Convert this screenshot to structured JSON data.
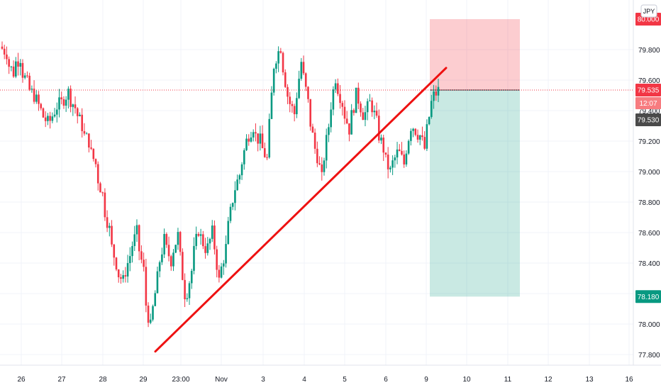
{
  "chart_data": {
    "type": "candlestick",
    "symbol_label": "JPY",
    "ylim": [
      77.7,
      80.0
    ],
    "y_ticks": [
      "79.800",
      "79.600",
      "79.400",
      "79.200",
      "79.000",
      "78.800",
      "78.600",
      "78.400",
      "78.200",
      "78.000",
      "77.800"
    ],
    "y_tick_values": [
      79.8,
      79.6,
      79.4,
      79.2,
      79.0,
      78.8,
      78.6,
      78.4,
      78.2,
      78.0,
      77.8
    ],
    "x_ticks": [
      "26",
      "27",
      "28",
      "29",
      "23:00",
      "Nov",
      "3",
      "4",
      "5",
      "6",
      "9",
      "10",
      "11",
      "12",
      "13",
      "16"
    ],
    "price_tags": {
      "current_price": "79.535",
      "countdown": "12:07",
      "last_close": "79.530",
      "target": "78.180",
      "stop": "80.000"
    },
    "levels": {
      "stop": 80.0,
      "entry": 79.535,
      "target": 78.18,
      "last_close": 79.53
    },
    "trendline": {
      "start": [
        "29",
        77.82
      ],
      "end": [
        "9",
        79.68
      ]
    },
    "path_points": [
      [
        79.82,
        79.78
      ],
      [
        79.72,
        79.65
      ],
      [
        79.7,
        79.75
      ],
      [
        79.68,
        79.58
      ],
      [
        79.55,
        79.5
      ],
      [
        79.5,
        79.4
      ],
      [
        79.38,
        79.32
      ],
      [
        79.3,
        79.4
      ],
      [
        79.42,
        79.45
      ],
      [
        79.46,
        79.52
      ],
      [
        79.5,
        79.42
      ],
      [
        79.4,
        79.3
      ],
      [
        79.25,
        79.2
      ],
      [
        79.15,
        79.05
      ],
      [
        79.0,
        78.85
      ],
      [
        78.8,
        78.62
      ],
      [
        78.55,
        78.4
      ],
      [
        78.35,
        78.28
      ],
      [
        78.3,
        78.45
      ],
      [
        78.48,
        78.6
      ],
      [
        78.55,
        78.35
      ],
      [
        78.2,
        77.98
      ],
      [
        78.0,
        78.3
      ],
      [
        78.35,
        78.55
      ],
      [
        78.52,
        78.42
      ],
      [
        78.45,
        78.58
      ],
      [
        78.55,
        78.2
      ],
      [
        78.15,
        78.35
      ],
      [
        78.4,
        78.62
      ],
      [
        78.6,
        78.5
      ],
      [
        78.45,
        78.6
      ],
      [
        78.62,
        78.28
      ],
      [
        78.3,
        78.5
      ],
      [
        78.55,
        78.82
      ],
      [
        78.85,
        78.98
      ],
      [
        79.0,
        79.2
      ],
      [
        79.22,
        79.3
      ],
      [
        79.25,
        79.2
      ],
      [
        79.18,
        79.08
      ],
      [
        79.1,
        79.7
      ],
      [
        79.72,
        79.82
      ],
      [
        79.78,
        79.5
      ],
      [
        79.48,
        79.38
      ],
      [
        79.4,
        79.72
      ],
      [
        79.7,
        79.45
      ],
      [
        79.4,
        79.15
      ],
      [
        79.18,
        78.95
      ],
      [
        79.0,
        79.3
      ],
      [
        79.35,
        79.62
      ],
      [
        79.6,
        79.45
      ],
      [
        79.42,
        79.28
      ],
      [
        79.3,
        79.5
      ],
      [
        79.52,
        79.38
      ],
      [
        79.35,
        79.45
      ],
      [
        79.48,
        79.32
      ],
      [
        79.28,
        79.15
      ],
      [
        79.1,
        79.0
      ],
      [
        79.02,
        79.12
      ],
      [
        79.15,
        79.05
      ],
      [
        79.08,
        79.3
      ],
      [
        79.32,
        79.25
      ],
      [
        79.28,
        79.15
      ],
      [
        79.18,
        79.45
      ],
      [
        79.48,
        79.53
      ]
    ]
  }
}
